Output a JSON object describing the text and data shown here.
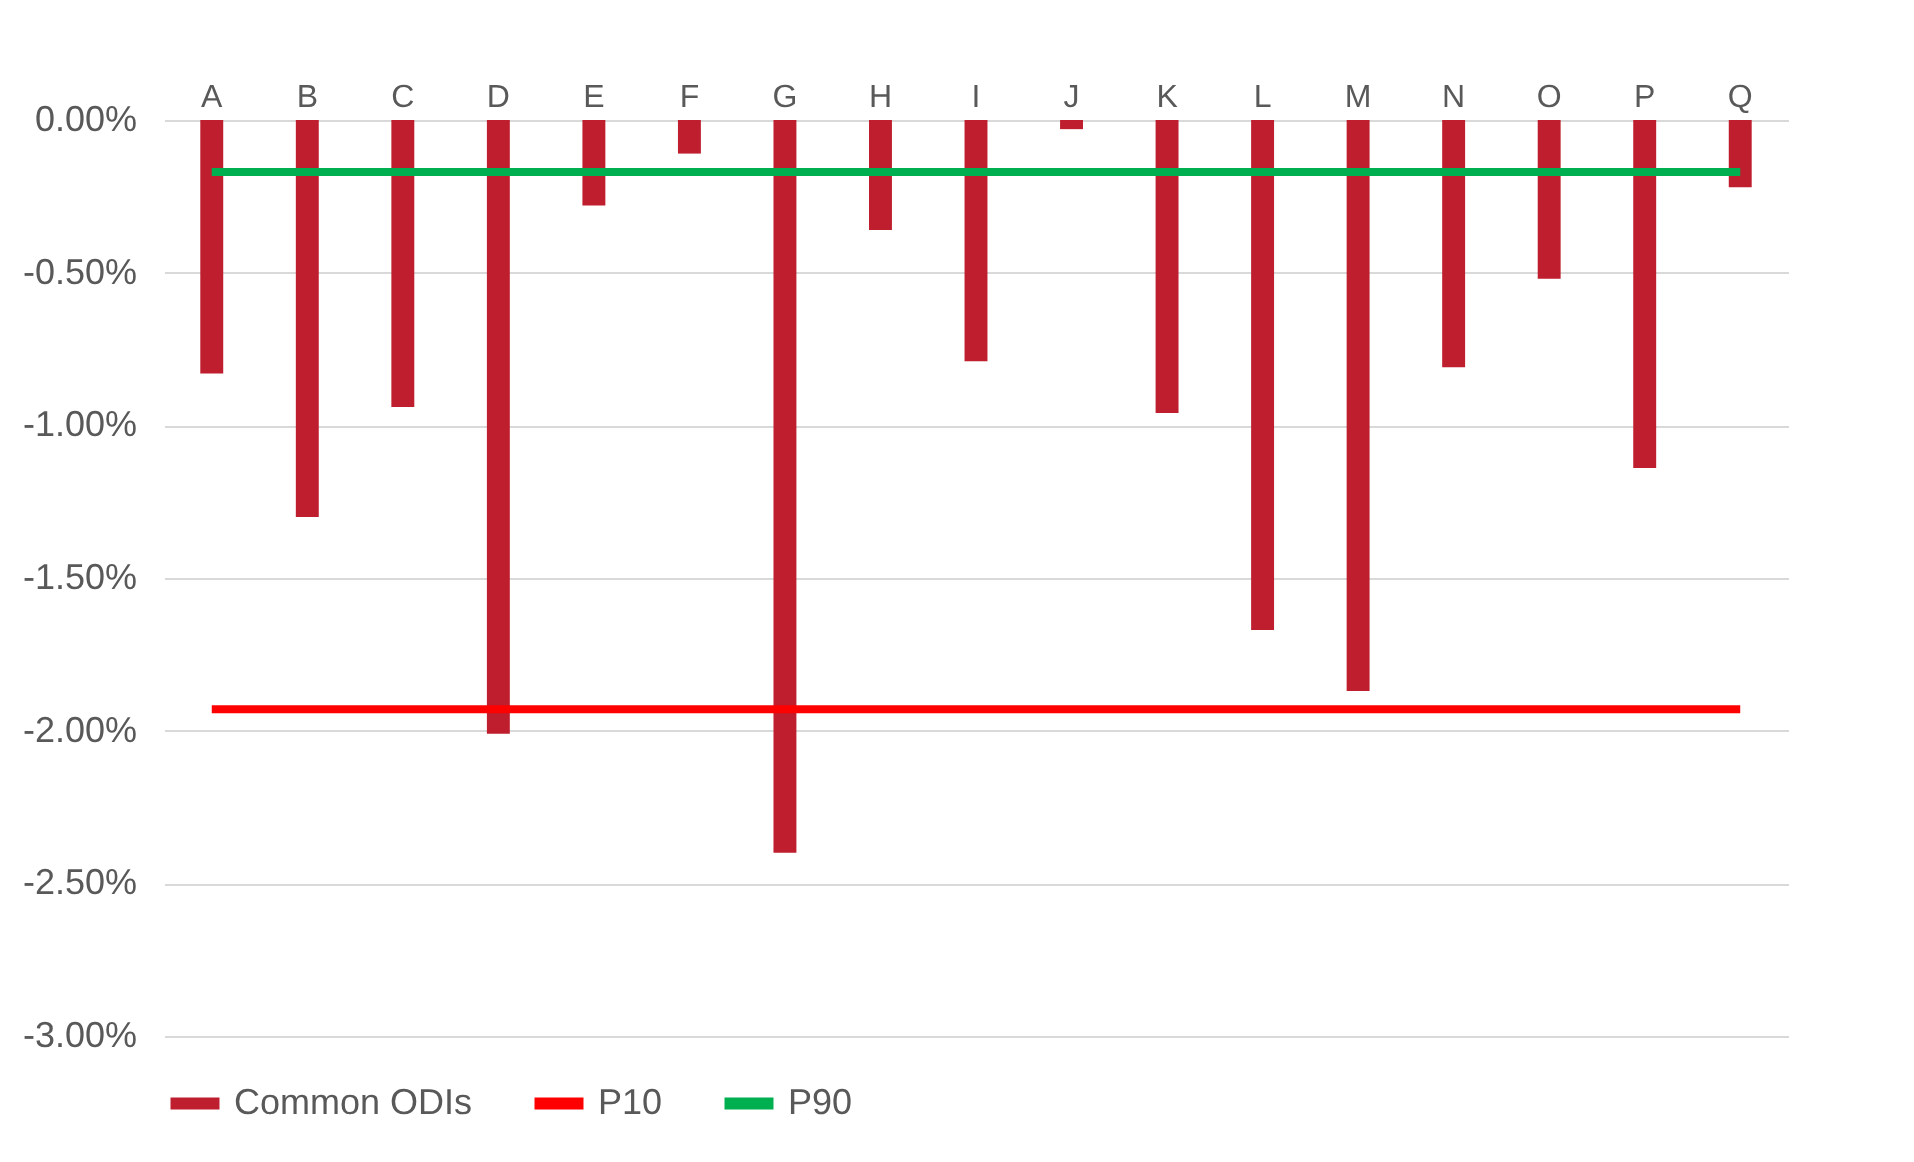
{
  "chart_data": {
    "type": "bar",
    "categories": [
      "A",
      "B",
      "C",
      "D",
      "E",
      "F",
      "G",
      "H",
      "I",
      "J",
      "K",
      "L",
      "M",
      "N",
      "O",
      "P",
      "Q"
    ],
    "series": [
      {
        "name": "Common ODIs",
        "color": "#be1e2d",
        "values": [
          -0.83,
          -1.3,
          -0.94,
          -2.01,
          -0.28,
          -0.11,
          -2.4,
          -0.36,
          -0.79,
          -0.03,
          -0.96,
          -1.67,
          -1.87,
          -0.81,
          -0.52,
          -1.14,
          -0.22
        ]
      },
      {
        "name": "P10",
        "type": "line",
        "color": "#ff0000",
        "values": [
          -1.93,
          -1.93,
          -1.93,
          -1.93,
          -1.93,
          -1.93,
          -1.93,
          -1.93,
          -1.93,
          -1.93,
          -1.93,
          -1.93,
          -1.93,
          -1.93,
          -1.93,
          -1.93,
          -1.93
        ]
      },
      {
        "name": "P90",
        "type": "line",
        "color": "#00b050",
        "values": [
          -0.17,
          -0.17,
          -0.17,
          -0.17,
          -0.17,
          -0.17,
          -0.17,
          -0.17,
          -0.17,
          -0.17,
          -0.17,
          -0.17,
          -0.17,
          -0.17,
          -0.17,
          -0.17,
          -0.17
        ]
      }
    ],
    "ylim": [
      -3,
      0
    ],
    "yticks": [
      {
        "value": 0,
        "label": "0.00%"
      },
      {
        "value": -0.5,
        "label": "-0.50%"
      },
      {
        "value": -1,
        "label": "-1.00%"
      },
      {
        "value": -1.5,
        "label": "-1.50%"
      },
      {
        "value": -2,
        "label": "-2.00%"
      },
      {
        "value": -2.5,
        "label": "-2.50%"
      },
      {
        "value": -3,
        "label": "-3.00%"
      }
    ],
    "grid": "y",
    "legend": "bottom",
    "marker": "none",
    "line_style": "solid"
  }
}
